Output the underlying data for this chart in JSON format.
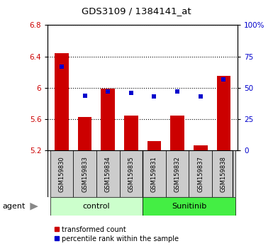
{
  "title": "GDS3109 / 1384141_at",
  "samples": [
    "GSM159830",
    "GSM159833",
    "GSM159834",
    "GSM159835",
    "GSM159831",
    "GSM159832",
    "GSM159837",
    "GSM159838"
  ],
  "red_values": [
    6.44,
    5.63,
    5.99,
    5.65,
    5.32,
    5.65,
    5.27,
    6.15
  ],
  "blue_values": [
    67,
    44,
    47,
    46,
    43,
    47,
    43,
    57
  ],
  "ylim_left": [
    5.2,
    6.8
  ],
  "ylim_right": [
    0,
    100
  ],
  "yticks_left": [
    5.2,
    5.6,
    6.0,
    6.4,
    6.8
  ],
  "yticks_right": [
    0,
    25,
    50,
    75,
    100
  ],
  "ytick_labels_left": [
    "5.2",
    "5.6",
    "6",
    "6.4",
    "6.8"
  ],
  "ytick_labels_right": [
    "0",
    "25",
    "50",
    "75",
    "100%"
  ],
  "control_label": "control",
  "sunitinib_label": "Sunitinib",
  "agent_label": "agent",
  "bar_color": "#cc0000",
  "dot_color": "#0000cc",
  "control_bg": "#ccffcc",
  "sunitinib_bg": "#44ee44",
  "sample_bg": "#cccccc",
  "bar_width": 0.6,
  "legend_red_label": "transformed count",
  "legend_blue_label": "percentile rank within the sample",
  "base_value": 5.2,
  "n_control": 4,
  "n_sunitinib": 4
}
